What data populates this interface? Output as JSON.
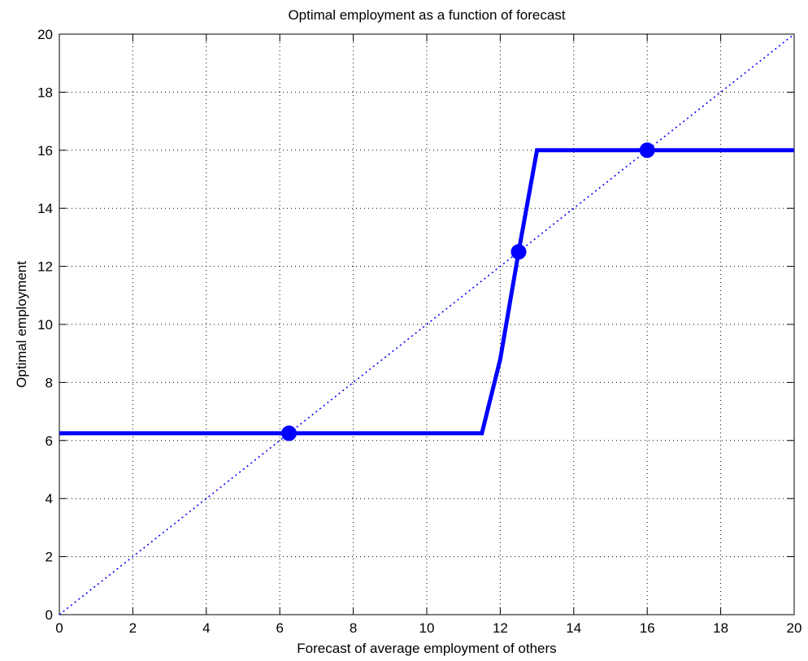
{
  "chart_data": {
    "type": "line",
    "title": "Optimal employment as a function of forecast",
    "xlabel": "Forecast of average employment of others",
    "ylabel": "Optimal employment",
    "xlim": [
      0,
      20
    ],
    "ylim": [
      0,
      20
    ],
    "xticks": [
      "0",
      "2",
      "4",
      "6",
      "8",
      "10",
      "12",
      "14",
      "16",
      "18",
      "20"
    ],
    "yticks": [
      "0",
      "2",
      "4",
      "6",
      "8",
      "10",
      "12",
      "14",
      "16",
      "18",
      "20"
    ],
    "grid": true,
    "legend": "none",
    "colors": {
      "series": "#0000ff",
      "axes": "#000000",
      "grid": "#000000"
    },
    "series": [
      {
        "style": "solid-thick",
        "x": [
          0,
          11.5,
          12.0,
          12.5,
          13.0,
          20
        ],
        "y": [
          6.25,
          6.25,
          8.8,
          12.5,
          16,
          16
        ]
      },
      {
        "style": "dotted",
        "x": [
          0,
          20
        ],
        "y": [
          0,
          20
        ]
      }
    ],
    "equilibria": [
      {
        "x": 6.25,
        "y": 6.25
      },
      {
        "x": 12.5,
        "y": 12.5
      },
      {
        "x": 16,
        "y": 16
      }
    ]
  }
}
